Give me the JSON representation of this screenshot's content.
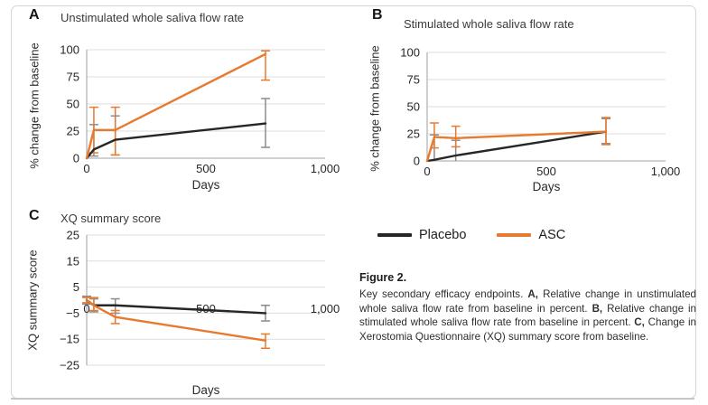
{
  "legend": {
    "items": [
      {
        "label": "Placebo",
        "color": "#262626"
      },
      {
        "label": "ASC",
        "color": "#e87a2f"
      }
    ]
  },
  "caption": {
    "title": "Figure 2.",
    "runs": [
      {
        "text": "Key secondary efficacy endpoints. ",
        "bold": false
      },
      {
        "text": "A,",
        "bold": true
      },
      {
        "text": " Relative change in unstimulated whole saliva flow rate from baseline in percent. ",
        "bold": false
      },
      {
        "text": "B,",
        "bold": true
      },
      {
        "text": " Relative change in stimulated whole saliva flow rate from baseline in percent. ",
        "bold": false
      },
      {
        "text": "C,",
        "bold": true
      },
      {
        "text": " Change in Xerostomia Questionnaire (XQ) summary score from baseline.",
        "bold": false
      }
    ]
  },
  "chart_data": [
    {
      "type": "line",
      "panel_label": "A",
      "title": "Unstimulated whole saliva flow rate",
      "xlabel": "Days",
      "ylabel": "% change from baseline",
      "xlim": [
        0,
        1000
      ],
      "ylim": [
        0,
        100
      ],
      "grid": true,
      "x_ticks": [
        {
          "value": 0,
          "label": "0"
        },
        {
          "value": 500,
          "label": "500"
        },
        {
          "value": 1000,
          "label": "1,000"
        }
      ],
      "y_ticks": [
        {
          "value": 0,
          "label": "0"
        },
        {
          "value": 25,
          "label": "25"
        },
        {
          "value": 50,
          "label": "50"
        },
        {
          "value": 75,
          "label": "75"
        },
        {
          "value": 100,
          "label": "100"
        }
      ],
      "series": [
        {
          "name": "Placebo",
          "color": "#262626",
          "err_color": "#8c8c8c",
          "points": [
            {
              "x": 0,
              "y": 0
            },
            {
              "x": 30,
              "y": 8,
              "up": 23,
              "dn": 6
            },
            {
              "x": 120,
              "y": 17,
              "up": 22,
              "dn": 14
            },
            {
              "x": 750,
              "y": 32,
              "up": 23,
              "dn": 22
            }
          ]
        },
        {
          "name": "ASC",
          "color": "#e87a2f",
          "err_color": "#e87a2f",
          "points": [
            {
              "x": 0,
              "y": 0
            },
            {
              "x": 30,
              "y": 26,
              "up": 21,
              "dn": 21
            },
            {
              "x": 120,
              "y": 26,
              "up": 21,
              "dn": 23
            },
            {
              "x": 750,
              "y": 96,
              "up": 3,
              "dn": 24
            }
          ]
        }
      ]
    },
    {
      "type": "line",
      "panel_label": "B",
      "title": "Stimulated whole saliva flow rate",
      "xlabel": "Days",
      "ylabel": "% change from baseline",
      "xlim": [
        0,
        1000
      ],
      "ylim": [
        0,
        100
      ],
      "grid": true,
      "x_ticks": [
        {
          "value": 0,
          "label": "0"
        },
        {
          "value": 500,
          "label": "500"
        },
        {
          "value": 1000,
          "label": "1,000"
        }
      ],
      "y_ticks": [
        {
          "value": 0,
          "label": "0"
        },
        {
          "value": 25,
          "label": "25"
        },
        {
          "value": 50,
          "label": "50"
        },
        {
          "value": 75,
          "label": "75"
        },
        {
          "value": 100,
          "label": "100"
        }
      ],
      "series": [
        {
          "name": "Placebo",
          "color": "#262626",
          "err_color": "#8c8c8c",
          "points": [
            {
              "x": 0,
              "y": 0
            },
            {
              "x": 30,
              "y": 1,
              "up": 23,
              "dn": 2
            },
            {
              "x": 120,
              "y": 5,
              "up": 14,
              "dn": 6
            },
            {
              "x": 750,
              "y": 27,
              "up": 12,
              "dn": 11
            }
          ]
        },
        {
          "name": "ASC",
          "color": "#e87a2f",
          "err_color": "#e87a2f",
          "points": [
            {
              "x": 0,
              "y": 0
            },
            {
              "x": 30,
              "y": 22,
              "up": 13,
              "dn": 10
            },
            {
              "x": 120,
              "y": 21,
              "up": 11,
              "dn": 8
            },
            {
              "x": 750,
              "y": 27,
              "up": 13,
              "dn": 12
            }
          ]
        }
      ]
    },
    {
      "type": "line",
      "panel_label": "C",
      "title": "XQ summary score",
      "xlabel": "Days",
      "ylabel": "XQ summary score",
      "xlim": [
        0,
        1000
      ],
      "ylim": [
        -25,
        25
      ],
      "grid": true,
      "x_labels_at_zero": true,
      "x_ticks": [
        {
          "value": 0,
          "label": "0"
        },
        {
          "value": 500,
          "label": "500"
        },
        {
          "value": 1000,
          "label": "1,000"
        }
      ],
      "y_ticks": [
        {
          "value": 25,
          "label": "25"
        },
        {
          "value": 15,
          "label": "15"
        },
        {
          "value": 5,
          "label": "5"
        },
        {
          "value": -5,
          "label": "−5"
        },
        {
          "value": -15,
          "label": "−15"
        },
        {
          "value": -25,
          "label": "−25"
        }
      ],
      "series": [
        {
          "name": "Placebo",
          "color": "#262626",
          "err_color": "#8c8c8c",
          "points": [
            {
              "x": 0,
              "y": 0,
              "up": 1.5,
              "dn": 1.5
            },
            {
              "x": 30,
              "y": -2,
              "up": 2.5,
              "dn": 2.5
            },
            {
              "x": 120,
              "y": -2,
              "up": 2.5,
              "dn": 3
            },
            {
              "x": 750,
              "y": -5,
              "up": 3,
              "dn": 3
            }
          ]
        },
        {
          "name": "ASC",
          "color": "#e87a2f",
          "err_color": "#e87a2f",
          "points": [
            {
              "x": 0,
              "y": 0,
              "up": 1,
              "dn": 1
            },
            {
              "x": 30,
              "y": -2,
              "up": 3,
              "dn": 2
            },
            {
              "x": 120,
              "y": -6.5,
              "up": 2.5,
              "dn": 2.5
            },
            {
              "x": 750,
              "y": -15.5,
              "up": 2.5,
              "dn": 3
            }
          ]
        }
      ]
    }
  ]
}
